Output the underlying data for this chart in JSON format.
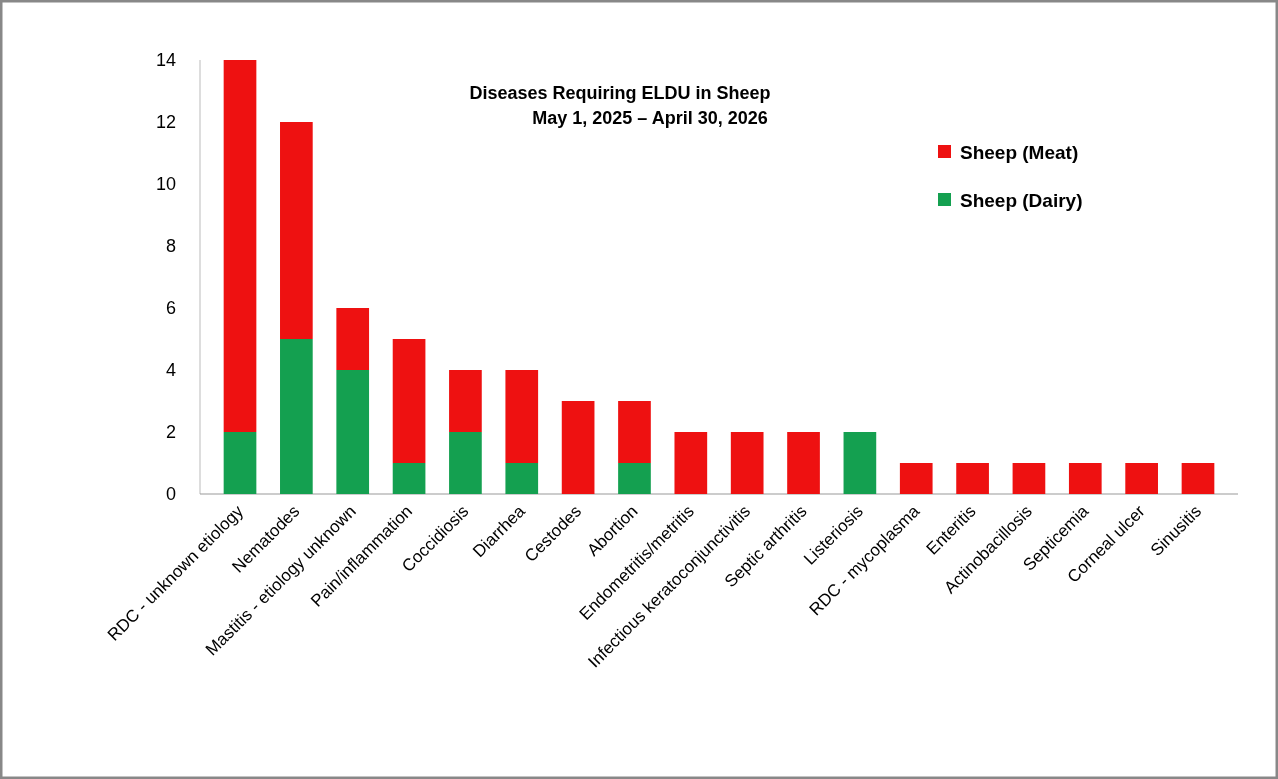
{
  "chart_data": {
    "type": "bar",
    "stacked": true,
    "title": "Diseases Requiring ELDU in Sheep",
    "subtitle": "May 1, 2025 – April 30, 2026",
    "categories": [
      "RDC - unknown etiology",
      "Nematodes",
      "Mastitis - etiology unknown",
      "Pain/inflammation",
      "Coccidiosis",
      "Diarrhea",
      "Cestodes",
      "Abortion",
      "Endometritis/metritis",
      "Infectious keratoconjunctivitis",
      "Septic arthritis",
      "Listeriosis",
      "RDC - mycoplasma",
      "Enteritis",
      "Actinobacillosis",
      "Septicemia",
      "Corneal ulcer",
      "Sinusitis"
    ],
    "series": [
      {
        "name": "Sheep (Dairy)",
        "color": "#14a050",
        "values": [
          2,
          5,
          4,
          1,
          2,
          1,
          0,
          1,
          0,
          0,
          0,
          2,
          0,
          0,
          0,
          0,
          0,
          0
        ]
      },
      {
        "name": "Sheep (Meat)",
        "color": "#ee1111",
        "values": [
          12,
          7,
          2,
          4,
          2,
          3,
          3,
          2,
          2,
          2,
          2,
          0,
          1,
          1,
          1,
          1,
          1,
          1
        ]
      }
    ],
    "ylim": [
      0,
      14
    ],
    "yticks": [
      0,
      2,
      4,
      6,
      8,
      10,
      12,
      14
    ],
    "grid": false,
    "legend": "top right"
  }
}
